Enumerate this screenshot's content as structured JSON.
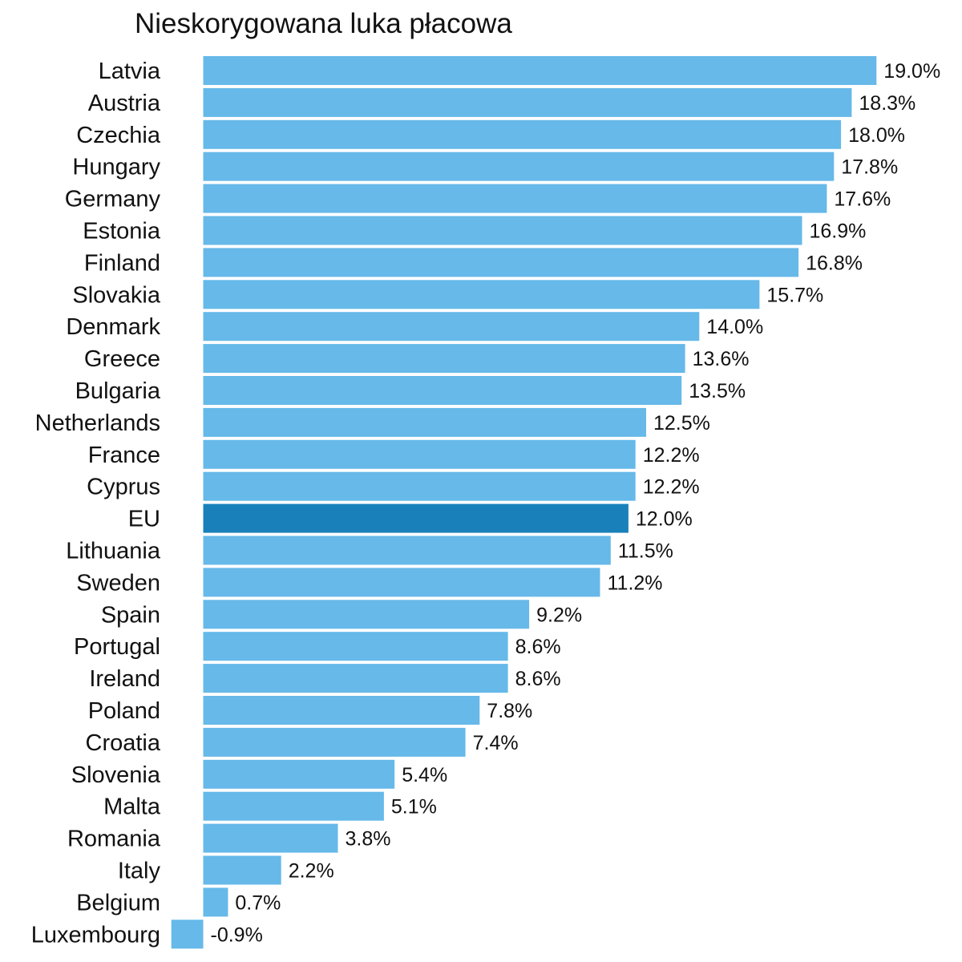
{
  "chart_data": {
    "type": "bar",
    "orientation": "horizontal",
    "title": "Nieskorygowana luka płacowa",
    "xlabel": "",
    "ylabel": "",
    "xlim": [
      -0.9,
      19.0
    ],
    "grid": false,
    "legend": "none",
    "colors": {
      "default": "#66b9e9",
      "highlight": "#1a80ba"
    },
    "highlight_category": "EU",
    "categories": [
      "Latvia",
      "Austria",
      "Czechia",
      "Hungary",
      "Germany",
      "Estonia",
      "Finland",
      "Slovakia",
      "Denmark",
      "Greece",
      "Bulgaria",
      "Netherlands",
      "France",
      "Cyprus",
      "EU",
      "Lithuania",
      "Sweden",
      "Spain",
      "Portugal",
      "Ireland",
      "Poland",
      "Croatia",
      "Slovenia",
      "Malta",
      "Romania",
      "Italy",
      "Belgium",
      "Luxembourg"
    ],
    "values": [
      19.0,
      18.3,
      18.0,
      17.8,
      17.6,
      16.9,
      16.8,
      15.7,
      14.0,
      13.6,
      13.5,
      12.5,
      12.2,
      12.2,
      12.0,
      11.5,
      11.2,
      9.2,
      8.6,
      8.6,
      7.8,
      7.4,
      5.4,
      5.1,
      3.8,
      2.2,
      0.7,
      -0.9
    ],
    "value_labels": [
      "19.0%",
      "18.3%",
      "18.0%",
      "17.8%",
      "17.6%",
      "16.9%",
      "16.8%",
      "15.7%",
      "14.0%",
      "13.6%",
      "13.5%",
      "12.5%",
      "12.2%",
      "12.2%",
      "12.0%",
      "11.5%",
      "11.2%",
      "9.2%",
      "8.6%",
      "8.6%",
      "7.8%",
      "7.4%",
      "5.4%",
      "5.1%",
      "3.8%",
      "2.2%",
      "0.7%",
      "-0.9%"
    ]
  }
}
